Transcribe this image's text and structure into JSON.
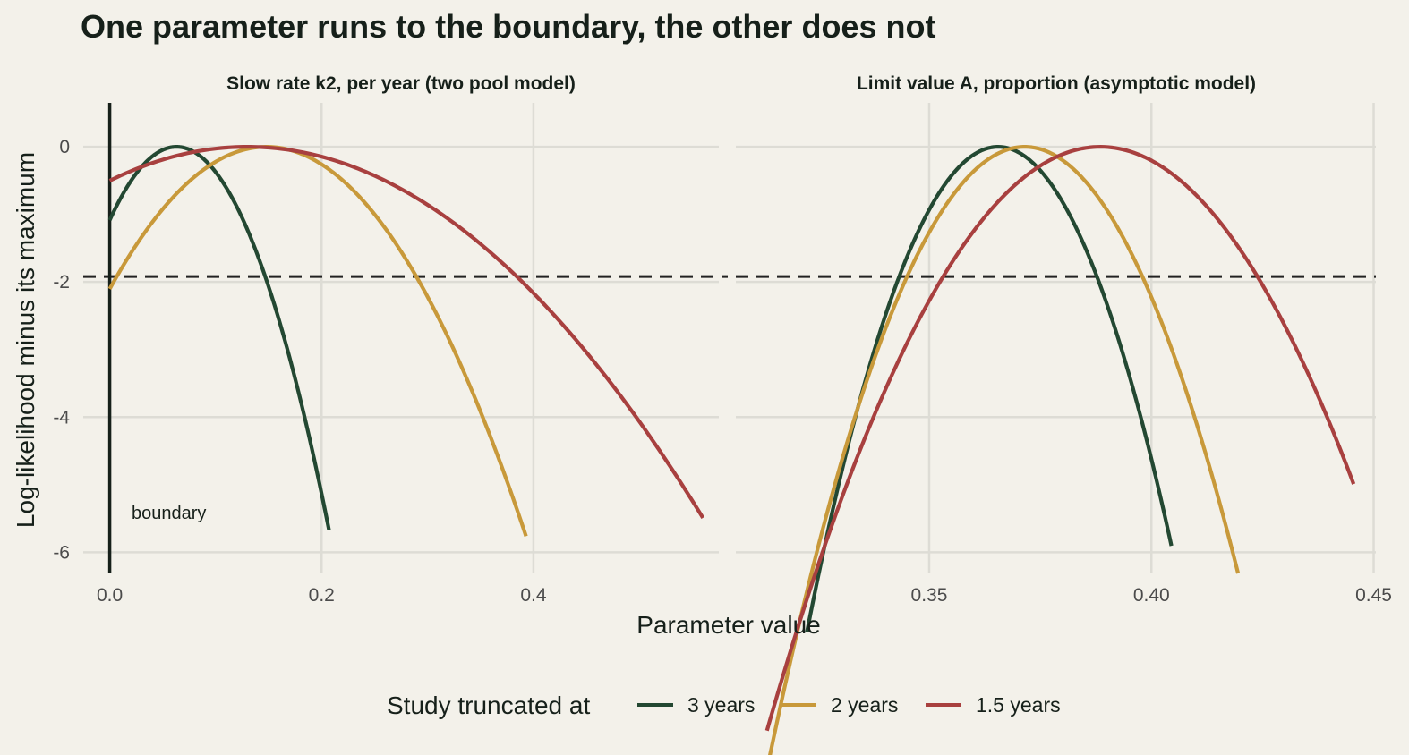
{
  "title": "One parameter runs to the boundary, the other does not",
  "xlabel": "Parameter value",
  "ylabel": "Log-likelihood minus its maximum",
  "legend": {
    "title": "Study truncated at",
    "position": "bottom",
    "entries": [
      {
        "label": "3 years",
        "color": "#234832"
      },
      {
        "label": "2 years",
        "color": "#c8993a"
      },
      {
        "label": "1.5 years",
        "color": "#a8403f"
      }
    ]
  },
  "reference_line": {
    "y": -1.92,
    "style": "dashed",
    "color": "#222222"
  },
  "grid": true,
  "chart_data": [
    {
      "type": "line",
      "title": "Slow rate k2, per year (two pool model)",
      "xlim": [
        -0.025,
        0.575
      ],
      "ylim": [
        -6.3,
        0.65
      ],
      "xticks": [
        0.0,
        0.2,
        0.4
      ],
      "xtick_labels": [
        "0.0",
        "0.2",
        "0.4"
      ],
      "yticks": [
        0,
        -2,
        -4,
        -6
      ],
      "ytick_labels": [
        "0",
        "-2",
        "-4",
        "-6"
      ],
      "boundary": {
        "x": 0.0,
        "label": "boundary"
      },
      "series": [
        {
          "name": "3 years",
          "peak_x": 0.063,
          "curvature": 273.5,
          "x_range": [
            0.0,
            0.207
          ]
        },
        {
          "name": "2 years",
          "peak_x": 0.148,
          "curvature": 96.0,
          "x_range": [
            0.0,
            0.393
          ]
        },
        {
          "name": "1.5 years",
          "peak_x": 0.13,
          "curvature": 29.7,
          "x_range": [
            0.0,
            0.56
          ]
        }
      ]
    },
    {
      "type": "line",
      "title": "Limit value A, proportion (asymptotic model)",
      "xlim": [
        0.3065,
        0.4505
      ],
      "ylim": [
        -6.3,
        0.65
      ],
      "xticks": [
        0.35,
        0.4,
        0.45
      ],
      "xtick_labels": [
        "0.35",
        "0.40",
        "0.45"
      ],
      "yticks": [
        0,
        -2,
        -4,
        -6
      ],
      "series": [
        {
          "name": "3 years",
          "peak_x": 0.3655,
          "curvature": 3882,
          "x_range": [
            0.3225,
            0.4045
          ]
        },
        {
          "name": "2 years",
          "peak_x": 0.3715,
          "curvature": 2740,
          "x_range": [
            0.3135,
            0.4195
          ]
        },
        {
          "name": "1.5 years",
          "peak_x": 0.3885,
          "curvature": 1536,
          "x_range": [
            0.3135,
            0.4455
          ]
        }
      ]
    }
  ]
}
